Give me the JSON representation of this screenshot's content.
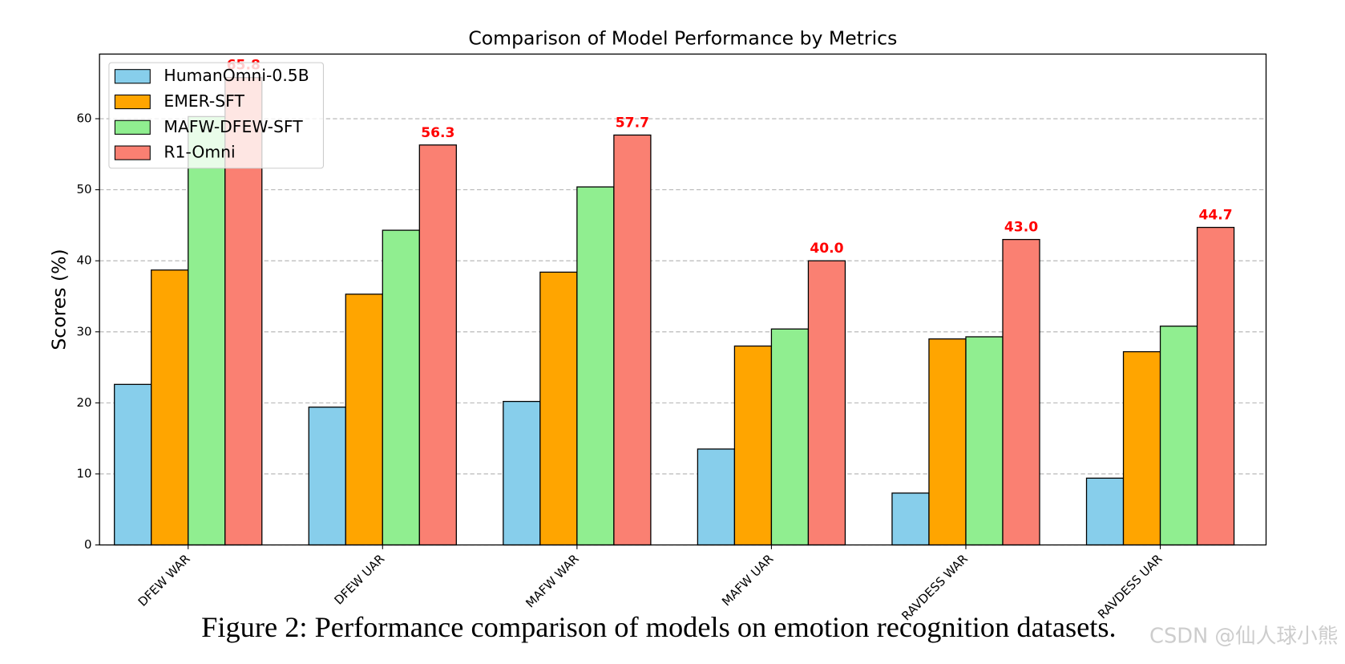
{
  "chart_data": {
    "type": "bar",
    "title": "Comparison of Model Performance by Metrics",
    "y_label": "Scores (%)",
    "categories": [
      "DFEW WAR",
      "DFEW UAR",
      "MAFW WAR",
      "MAFW UAR",
      "RAVDESS WAR",
      "RAVDESS UAR"
    ],
    "series": [
      {
        "name": "HumanOmni-0.5B",
        "color": "#87ceeb",
        "values": [
          22.6,
          19.4,
          20.2,
          13.5,
          7.3,
          9.4
        ]
      },
      {
        "name": "EMER-SFT",
        "color": "#ffa500",
        "values": [
          38.7,
          35.3,
          38.4,
          28.0,
          29.0,
          27.2
        ]
      },
      {
        "name": "MAFW-DFEW-SFT",
        "color": "#90ee90",
        "values": [
          60.3,
          44.3,
          50.4,
          30.4,
          29.3,
          30.8
        ]
      },
      {
        "name": "R1-Omni",
        "color": "#fa8072",
        "values": [
          65.8,
          56.3,
          57.7,
          40.0,
          43.0,
          44.7
        ],
        "value_labels": [
          "65.8",
          "56.3",
          "57.7",
          "40.0",
          "43.0",
          "44.7"
        ],
        "label_color": "#ff0000"
      }
    ],
    "ylim": [
      0,
      69.1
    ],
    "yticks": [
      0,
      10,
      20,
      30,
      40,
      50,
      60
    ],
    "grid": true,
    "legend": "upper left",
    "caption": "Figure 2: Performance comparison of models on emotion recognition datasets.",
    "watermark": "CSDN @仙人球小熊"
  }
}
